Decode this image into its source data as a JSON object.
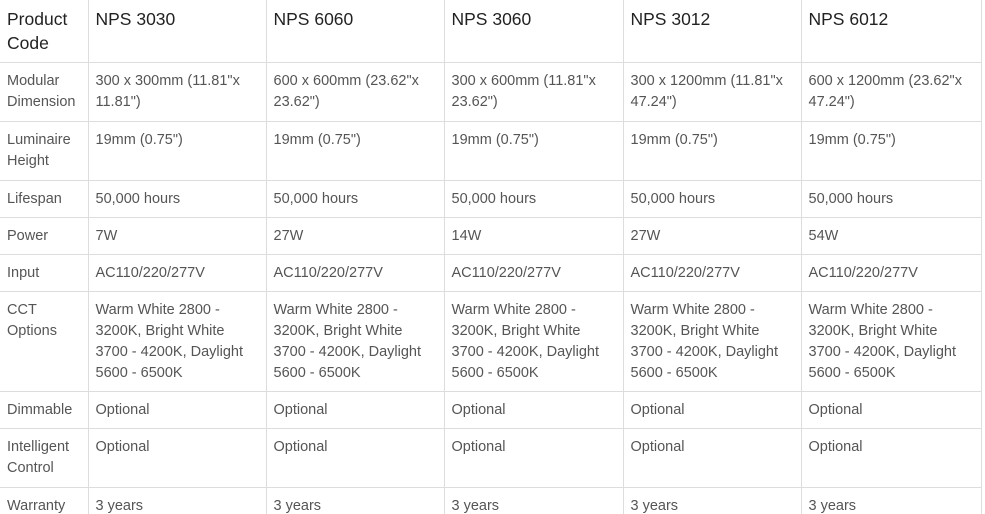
{
  "header": [
    "Product Code",
    "NPS 3030",
    "NPS 6060",
    "NPS 3060",
    "NPS 3012",
    "NPS 6012"
  ],
  "rows": [
    {
      "label": "Modular Dimension",
      "values": [
        "300 x 300mm (11.81\"x 11.81\")",
        "600 x 600mm (23.62\"x 23.62\")",
        "300 x 600mm (11.81\"x 23.62\")",
        "300 x 1200mm (11.81\"x 47.24\")",
        "600 x 1200mm (23.62\"x 47.24\")"
      ]
    },
    {
      "label": "Luminaire Height",
      "values": [
        "19mm (0.75\")",
        "19mm (0.75\")",
        "19mm (0.75\")",
        "19mm (0.75\")",
        "19mm (0.75\")"
      ]
    },
    {
      "label": "Lifespan",
      "values": [
        "50,000 hours",
        "50,000 hours",
        "50,000 hours",
        "50,000 hours",
        "50,000 hours"
      ]
    },
    {
      "label": "Power",
      "values": [
        "7W",
        "27W",
        "14W",
        "27W",
        "54W"
      ]
    },
    {
      "label": "Input",
      "values": [
        "AC110/220/277V",
        "AC110/220/277V",
        "AC110/220/277V",
        "AC110/220/277V",
        "AC110/220/277V"
      ]
    },
    {
      "label": "CCT Options",
      "values": [
        "Warm White 2800 - 3200K, Bright White 3700 - 4200K, Daylight 5600 - 6500K",
        "Warm White 2800 - 3200K, Bright White 3700 - 4200K, Daylight 5600 - 6500K",
        "Warm White 2800 - 3200K, Bright White 3700 - 4200K, Daylight 5600 - 6500K",
        "Warm White 2800 - 3200K, Bright White 3700 - 4200K, Daylight 5600 - 6500K",
        "Warm White 2800 - 3200K, Bright White 3700 - 4200K, Daylight 5600 - 6500K"
      ]
    },
    {
      "label": "Dimmable",
      "values": [
        "Optional",
        "Optional",
        "Optional",
        "Optional",
        "Optional"
      ]
    },
    {
      "label": "Intelligent Control",
      "values": [
        "Optional",
        "Optional",
        "Optional",
        "Optional",
        "Optional"
      ]
    },
    {
      "label": "Warranty",
      "values": [
        "3 years",
        "3 years",
        "3 years",
        "3 years",
        "3 years"
      ]
    }
  ]
}
